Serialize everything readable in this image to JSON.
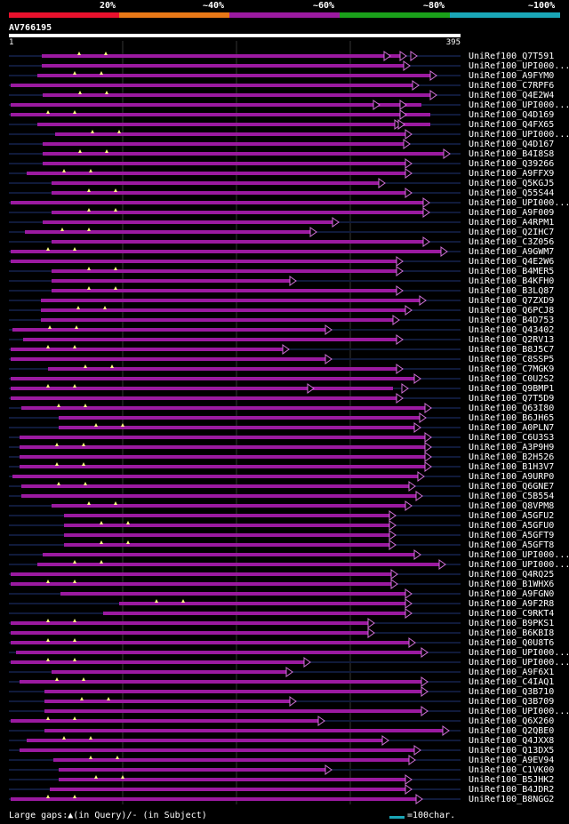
{
  "legend": {
    "labels": [
      "20%",
      "~40%",
      "~60%",
      "~80%",
      "~100%"
    ],
    "colors": [
      "#e8112d",
      "#e87817",
      "#9b1aa0",
      "#1aa01a",
      "#1aa6b7"
    ]
  },
  "query": {
    "id": "AV766195",
    "start": "1",
    "end": "395"
  },
  "hits": [
    "UniRef100_Q7T591",
    "UniRef100_UPI000...",
    "UniRef100_A9FYM0",
    "UniRef100_C7RPF6",
    "UniRef100_Q4E2W4",
    "UniRef100_UPI000...",
    "UniRef100_Q4D169",
    "UniRef100_Q4FX65",
    "UniRef100_UPI000...",
    "UniRef100_Q4D167",
    "UniRef100_B4I8S8",
    "UniRef100_Q39266",
    "UniRef100_A9FFX9",
    "UniRef100_Q5KGJ5",
    "UniRef100_Q55S44",
    "UniRef100_UPI000...",
    "UniRef100_A9F009",
    "UniRef100_A4RPM1",
    "UniRef100_Q2IHC7",
    "UniRef100_C3Z056",
    "UniRef100_A9GWM7",
    "UniRef100_Q4E2W6",
    "UniRef100_B4MER5",
    "UniRef100_B4KFH0",
    "UniRef100_B3LQ87",
    "UniRef100_Q7ZXD9",
    "UniRef100_Q6PCJ8",
    "UniRef100_B4D753",
    "UniRef100_Q43402",
    "UniRef100_Q2RV13",
    "UniRef100_B8J5C7",
    "UniRef100_C8SSP5",
    "UniRef100_C7MGK9",
    "UniRef100_C0U2S2",
    "UniRef100_Q9BMP1",
    "UniRef100_Q7T5D9",
    "UniRef100_Q63I80",
    "UniRef100_B6JH65",
    "UniRef100_A0PLN7",
    "UniRef100_C6U3S3",
    "UniRef100_A3P9H9",
    "UniRef100_B2H526",
    "UniRef100_B1H3V7",
    "UniRef100_A9URP0",
    "UniRef100_Q6GNE7",
    "UniRef100_C5B554",
    "UniRef100_Q8VPM8",
    "UniRef100_A5GFU2",
    "UniRef100_A5GFU0",
    "UniRef100_A5GFT9",
    "UniRef100_A5GFT8",
    "UniRef100_UPI000...",
    "UniRef100_UPI000...",
    "UniRef100_Q4RQ25",
    "UniRef100_B1WHX6",
    "UniRef100_A9FGN0",
    "UniRef100_A9F2R8",
    "UniRef100_C9RKT4",
    "UniRef100_B9PKS1",
    "UniRef100_B6KBI8",
    "UniRef100_Q0U8T6",
    "UniRef100_UPI000...",
    "UniRef100_UPI000...",
    "UniRef100_A9F6X1",
    "UniRef100_C4IAQ1",
    "UniRef100_Q3B710",
    "UniRef100_Q3B709",
    "UniRef100_UPI000...",
    "UniRef100_Q6X260",
    "UniRef100_Q2QBE0",
    "UniRef100_Q4JXX8",
    "UniRef100_Q13DX5",
    "UniRef100_A9EV94",
    "UniRef100_C1VK00",
    "UniRef100_B5JHK2",
    "UniRef100_B4JDR2",
    "UniRef100_B8NGG2"
  ],
  "footer": {
    "gaps_text": "Large gaps:▲(in Query)/- (in Subject)",
    "scale_text": "=100char."
  }
}
